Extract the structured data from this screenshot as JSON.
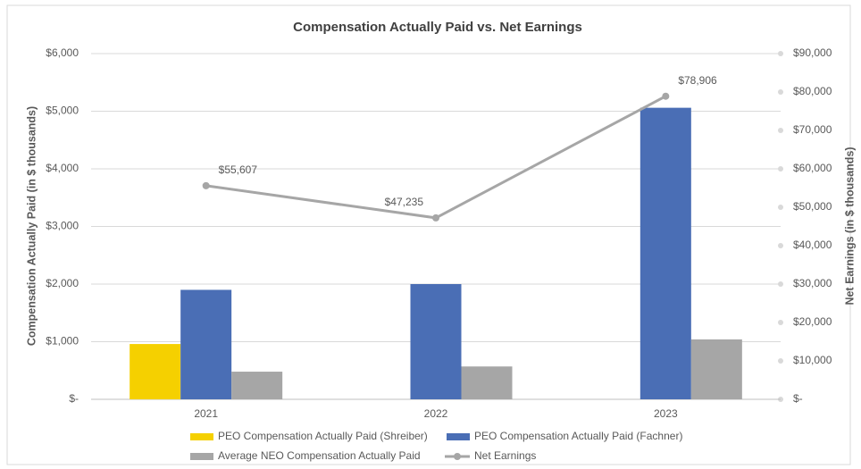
{
  "chart_data": {
    "type": "bar",
    "title": "Compensation Actually Paid vs. Net Earnings",
    "y_label": "Compensation Actually Paid (in $ thousands)",
    "y2_label": "Net Earnings (in $ thousands)",
    "categories": [
      "2021",
      "2022",
      "2023"
    ],
    "series": [
      {
        "name": "PEO Compensation Actually Paid (Shreiber)",
        "color": "#f5d000",
        "values": [
          960,
          null,
          null
        ]
      },
      {
        "name": "PEO Compensation Actually Paid (Fachner)",
        "color": "#4a6eb5",
        "values": [
          1900,
          2000,
          5060
        ]
      },
      {
        "name": "Average NEO Compensation Actually Paid",
        "color": "#a6a6a6",
        "values": [
          480,
          570,
          1040
        ]
      },
      {
        "name": "Net Earnings",
        "type": "line",
        "axis": "y2",
        "color": "#a6a6a6",
        "values": [
          55607,
          47235,
          78906
        ],
        "value_labels": [
          "$55,607",
          "$47,235",
          "$78,906"
        ]
      }
    ],
    "ylim": [
      0,
      6000
    ],
    "yticks": [
      {
        "value": 0,
        "label": "$-"
      },
      {
        "value": 1000,
        "label": "$1,000"
      },
      {
        "value": 2000,
        "label": "$2,000"
      },
      {
        "value": 3000,
        "label": "$3,000"
      },
      {
        "value": 4000,
        "label": "$4,000"
      },
      {
        "value": 5000,
        "label": "$5,000"
      },
      {
        "value": 6000,
        "label": "$6,000"
      }
    ],
    "y2lim": [
      0,
      90000
    ],
    "y2ticks": [
      {
        "value": 0,
        "label": "$-"
      },
      {
        "value": 10000,
        "label": "$10,000"
      },
      {
        "value": 20000,
        "label": "$20,000"
      },
      {
        "value": 30000,
        "label": "$30,000"
      },
      {
        "value": 40000,
        "label": "$40,000"
      },
      {
        "value": 50000,
        "label": "$50,000"
      },
      {
        "value": 60000,
        "label": "$60,000"
      },
      {
        "value": 70000,
        "label": "$70,000"
      },
      {
        "value": 80000,
        "label": "$80,000"
      },
      {
        "value": 90000,
        "label": "$90,000"
      }
    ],
    "grid": true,
    "legend": "bottom"
  }
}
